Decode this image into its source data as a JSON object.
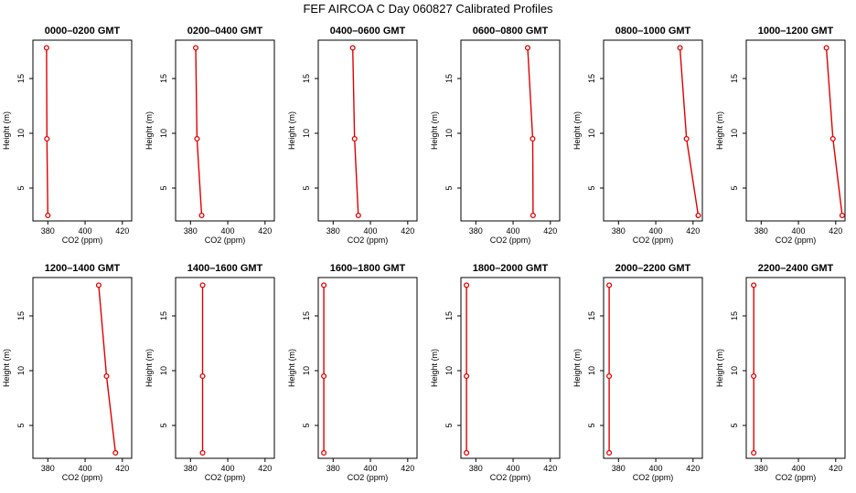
{
  "figure": {
    "title": "FEF AIRCOA C  Day 060827  Calibrated Profiles"
  },
  "colors": {
    "profile": "#e00000",
    "axis": "#000000"
  },
  "chart_data": [
    {
      "type": "line",
      "title": "0000–0200 GMT",
      "xlabel": "CO2 (ppm)",
      "ylabel": "Height (m)",
      "xlim": [
        372,
        425
      ],
      "ylim": [
        2,
        18.5
      ],
      "xticks": [
        380,
        400,
        420
      ],
      "yticks": [
        5,
        10,
        15
      ],
      "series": [
        {
          "x": [
            380.0,
            379.5,
            379.3
          ],
          "y": [
            2.5,
            9.5,
            17.8
          ]
        }
      ]
    },
    {
      "type": "line",
      "title": "0200–0400 GMT",
      "xlabel": "CO2 (ppm)",
      "ylabel": "Height (m)",
      "xlim": [
        372,
        425
      ],
      "ylim": [
        2,
        18.5
      ],
      "xticks": [
        380,
        400,
        420
      ],
      "yticks": [
        5,
        10,
        15
      ],
      "series": [
        {
          "x": [
            386.0,
            383.5,
            382.8
          ],
          "y": [
            2.5,
            9.5,
            17.8
          ]
        }
      ]
    },
    {
      "type": "line",
      "title": "0400–0600 GMT",
      "xlabel": "CO2 (ppm)",
      "ylabel": "Height (m)",
      "xlim": [
        372,
        425
      ],
      "ylim": [
        2,
        18.5
      ],
      "xticks": [
        380,
        400,
        420
      ],
      "yticks": [
        5,
        10,
        15
      ],
      "series": [
        {
          "x": [
            393.5,
            391.5,
            390.5
          ],
          "y": [
            2.5,
            9.5,
            17.8
          ]
        }
      ]
    },
    {
      "type": "line",
      "title": "0600–0800 GMT",
      "xlabel": "CO2 (ppm)",
      "ylabel": "Height (m)",
      "xlim": [
        372,
        425
      ],
      "ylim": [
        2,
        18.5
      ],
      "xticks": [
        380,
        400,
        420
      ],
      "yticks": [
        5,
        10,
        15
      ],
      "series": [
        {
          "x": [
            410.7,
            410.5,
            407.8
          ],
          "y": [
            2.5,
            9.5,
            17.8
          ]
        }
      ]
    },
    {
      "type": "line",
      "title": "0800–1000 GMT",
      "xlabel": "CO2 (ppm)",
      "ylabel": "Height (m)",
      "xlim": [
        372,
        425
      ],
      "ylim": [
        2,
        18.5
      ],
      "xticks": [
        380,
        400,
        420
      ],
      "yticks": [
        5,
        10,
        15
      ],
      "series": [
        {
          "x": [
            422.8,
            416.5,
            413.0
          ],
          "y": [
            2.5,
            9.5,
            17.8
          ]
        }
      ]
    },
    {
      "type": "line",
      "title": "1000–1200 GMT",
      "xlabel": "CO2 (ppm)",
      "ylabel": "Height (m)",
      "xlim": [
        372,
        425
      ],
      "ylim": [
        2,
        18.5
      ],
      "xticks": [
        380,
        400,
        420
      ],
      "yticks": [
        5,
        10,
        15
      ],
      "series": [
        {
          "x": [
            423.5,
            418.5,
            415.0
          ],
          "y": [
            2.5,
            9.5,
            17.8
          ]
        }
      ]
    },
    {
      "type": "line",
      "title": "1200–1400 GMT",
      "xlabel": "CO2 (ppm)",
      "ylabel": "Height (m)",
      "xlim": [
        372,
        425
      ],
      "ylim": [
        2,
        18.5
      ],
      "xticks": [
        380,
        400,
        420
      ],
      "yticks": [
        5,
        10,
        15
      ],
      "series": [
        {
          "x": [
            416.3,
            411.5,
            407.3
          ],
          "y": [
            2.5,
            9.5,
            17.8
          ]
        }
      ]
    },
    {
      "type": "line",
      "title": "1400–1600 GMT",
      "xlabel": "CO2 (ppm)",
      "ylabel": "Height (m)",
      "xlim": [
        372,
        425
      ],
      "ylim": [
        2,
        18.5
      ],
      "xticks": [
        380,
        400,
        420
      ],
      "yticks": [
        5,
        10,
        15
      ],
      "series": [
        {
          "x": [
            386.5,
            386.5,
            386.5
          ],
          "y": [
            2.5,
            9.5,
            17.8
          ]
        }
      ]
    },
    {
      "type": "line",
      "title": "1600–1800 GMT",
      "xlabel": "CO2 (ppm)",
      "ylabel": "Height (m)",
      "xlim": [
        372,
        425
      ],
      "ylim": [
        2,
        18.5
      ],
      "xticks": [
        380,
        400,
        420
      ],
      "yticks": [
        5,
        10,
        15
      ],
      "series": [
        {
          "x": [
            375.0,
            375.0,
            375.0
          ],
          "y": [
            2.5,
            9.5,
            17.8
          ]
        }
      ]
    },
    {
      "type": "line",
      "title": "1800–2000 GMT",
      "xlabel": "CO2 (ppm)",
      "ylabel": "Height (m)",
      "xlim": [
        372,
        425
      ],
      "ylim": [
        2,
        18.5
      ],
      "xticks": [
        380,
        400,
        420
      ],
      "yticks": [
        5,
        10,
        15
      ],
      "series": [
        {
          "x": [
            375.0,
            375.0,
            375.0
          ],
          "y": [
            2.5,
            9.5,
            17.8
          ]
        }
      ]
    },
    {
      "type": "line",
      "title": "2000–2200 GMT",
      "xlabel": "CO2 (ppm)",
      "ylabel": "Height (m)",
      "xlim": [
        372,
        425
      ],
      "ylim": [
        2,
        18.5
      ],
      "xticks": [
        380,
        400,
        420
      ],
      "yticks": [
        5,
        10,
        15
      ],
      "series": [
        {
          "x": [
            375.0,
            375.0,
            375.0
          ],
          "y": [
            2.5,
            9.5,
            17.8
          ]
        }
      ]
    },
    {
      "type": "line",
      "title": "2200–2400 GMT",
      "xlabel": "CO2 (ppm)",
      "ylabel": "Height (m)",
      "xlim": [
        372,
        425
      ],
      "ylim": [
        2,
        18.5
      ],
      "xticks": [
        380,
        400,
        420
      ],
      "yticks": [
        5,
        10,
        15
      ],
      "series": [
        {
          "x": [
            376.0,
            376.0,
            376.0
          ],
          "y": [
            2.5,
            9.5,
            17.8
          ]
        }
      ]
    }
  ]
}
